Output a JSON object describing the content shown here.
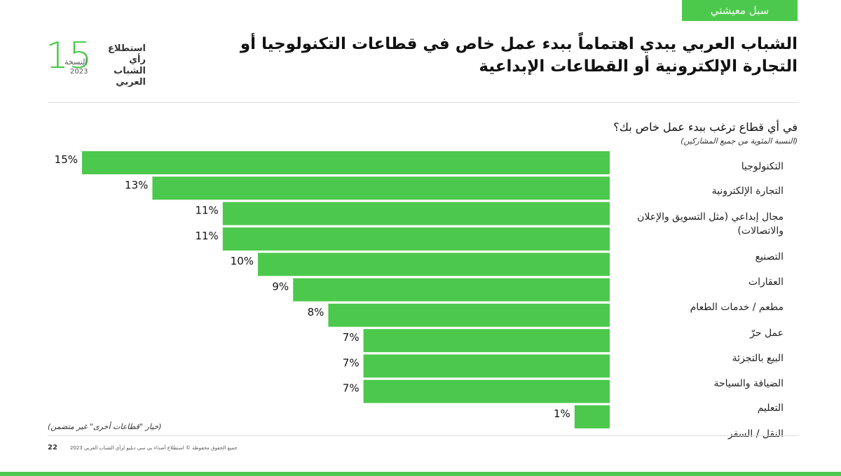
{
  "header": {
    "tab": "سبل معيشتي",
    "title_line1": "الشباب العربي يبدي اهتماماً ببدء عمل خاص في قطاعات التكنولوجيا أو",
    "title_line2": "التجارة الإلكترونية أو القطاعات الإبداعية",
    "logo_number": "15",
    "logo_edition": "النسخة",
    "logo_year": "2023",
    "logo_name": "استطلاع رأي الشباب العربي"
  },
  "chart_data": {
    "type": "bar",
    "orientation": "horizontal",
    "title": "في أي قطاع ترغب ببدء عمل خاص بك؟",
    "subtitle": "(النسبة المئوية من جميع المشاركين)",
    "note": "(خيار \"قطاعات أخرى\" غير متضمن)",
    "color": "#4cc94c",
    "categories": [
      "التكنولوجيا",
      "التجارة الإلكترونية",
      "مجال إبداعي (مثل التسويق والإعلان والاتصالات)",
      "التصنيع",
      "العقارات",
      "مطعم / خدمات الطعام",
      "عمل حرّ",
      "البيع بالتجزئة",
      "الضيافة والسياحة",
      "التعليم",
      "النقل / السفر"
    ],
    "values": [
      15,
      13,
      11,
      11,
      10,
      9,
      8,
      7,
      7,
      7,
      1
    ],
    "value_labels": [
      "15%",
      "13%",
      "11%",
      "11%",
      "10%",
      "9%",
      "8%",
      "7%",
      "7%",
      "7%",
      "1%"
    ]
  },
  "footer": {
    "page": "22",
    "copyright": "جميع الحقوق محفوظة © استطلاع أصداء بي سي دبليو لرأي الشباب العربي 2023"
  }
}
